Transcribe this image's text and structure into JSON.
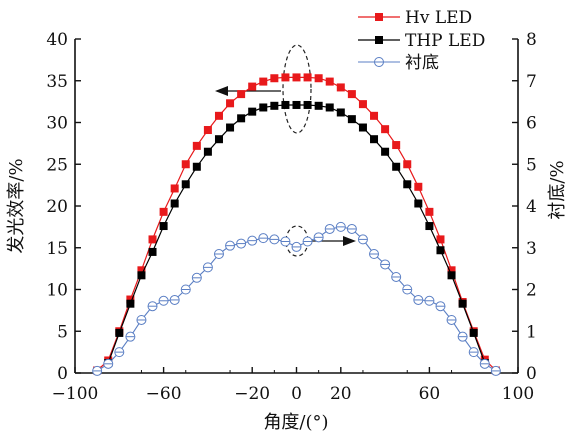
{
  "chart_data": {
    "type": "line",
    "xlabel": "角度/(°)",
    "ylabel_left": "发光效率/%",
    "ylabel_right": "衬底/%",
    "xlim": [
      -100,
      100
    ],
    "ylim_left": [
      0,
      40
    ],
    "ylim_right": [
      0,
      8
    ],
    "xticks": [
      "-100",
      "-60",
      "-20",
      "0",
      "20",
      "60",
      "100"
    ],
    "xtick_values": [
      -100,
      -60,
      -20,
      0,
      20,
      60,
      100
    ],
    "yticks_left": [
      "0",
      "5",
      "10",
      "15",
      "20",
      "25",
      "30",
      "35",
      "40"
    ],
    "yticks_right": [
      "0",
      "1",
      "2",
      "3",
      "4",
      "5",
      "6",
      "7",
      "8"
    ],
    "grid": false,
    "legend_position": "top-right",
    "series": [
      {
        "name": "Hv LED",
        "axis": "left",
        "color": "#e8191b",
        "marker": "square-filled",
        "x": [
          -90,
          -85,
          -80,
          -75,
          -70,
          -65,
          -60,
          -55,
          -50,
          -45,
          -40,
          -35,
          -30,
          -25,
          -20,
          -15,
          -10,
          -5,
          0,
          5,
          10,
          15,
          20,
          25,
          30,
          35,
          40,
          45,
          50,
          55,
          60,
          65,
          70,
          75,
          80,
          85,
          90
        ],
        "values": [
          0.3,
          1.5,
          5.0,
          8.8,
          12.3,
          16.0,
          19.3,
          22.1,
          25.0,
          27.2,
          29.1,
          30.8,
          32.3,
          33.4,
          34.3,
          34.9,
          35.3,
          35.4,
          35.4,
          35.4,
          35.3,
          34.9,
          34.2,
          33.4,
          32.2,
          30.8,
          29.2,
          27.3,
          25.0,
          22.3,
          19.3,
          16.0,
          12.3,
          8.5,
          5.0,
          1.6,
          0.3
        ]
      },
      {
        "name": "THP LED",
        "axis": "left",
        "color": "#000000",
        "marker": "square-filled",
        "x": [
          -85,
          -80,
          -75,
          -70,
          -65,
          -60,
          -55,
          -50,
          -45,
          -40,
          -35,
          -30,
          -25,
          -20,
          -15,
          -10,
          -5,
          0,
          5,
          10,
          15,
          20,
          25,
          30,
          35,
          40,
          45,
          50,
          55,
          60,
          65,
          70,
          75,
          80,
          85
        ],
        "values": [
          1.2,
          4.8,
          8.3,
          11.7,
          14.5,
          17.6,
          20.3,
          22.6,
          24.7,
          26.5,
          28.0,
          29.4,
          30.5,
          31.3,
          31.8,
          32.0,
          32.1,
          32.1,
          32.1,
          32.0,
          31.8,
          31.2,
          30.4,
          29.4,
          28.0,
          26.5,
          24.7,
          22.6,
          20.3,
          17.6,
          14.7,
          11.7,
          8.3,
          4.8,
          1.2
        ]
      },
      {
        "name": "衬底",
        "axis": "right",
        "color": "#5b7fc4",
        "marker": "circle-open-dash",
        "x": [
          -90,
          -85,
          -80,
          -75,
          -70,
          -65,
          -60,
          -55,
          -50,
          -45,
          -40,
          -35,
          -30,
          -25,
          -20,
          -15,
          -10,
          -5,
          0,
          5,
          10,
          15,
          20,
          25,
          30,
          35,
          40,
          45,
          50,
          55,
          60,
          65,
          70,
          75,
          80,
          85,
          90
        ],
        "values": [
          0.05,
          0.22,
          0.5,
          0.87,
          1.27,
          1.6,
          1.73,
          1.75,
          2.0,
          2.28,
          2.53,
          2.85,
          3.05,
          3.1,
          3.17,
          3.23,
          3.2,
          3.15,
          3.02,
          3.15,
          3.25,
          3.45,
          3.5,
          3.45,
          3.2,
          2.85,
          2.6,
          2.3,
          2.0,
          1.75,
          1.73,
          1.6,
          1.27,
          0.87,
          0.5,
          0.22,
          0.05
        ]
      }
    ],
    "annotations": [
      {
        "type": "ellipse",
        "center": [
          0,
          35
        ],
        "axis": "left",
        "arrow_direction": "left"
      },
      {
        "type": "ellipse",
        "center": [
          0,
          15.5
        ],
        "axis": "left",
        "arrow_direction": "right"
      }
    ]
  }
}
